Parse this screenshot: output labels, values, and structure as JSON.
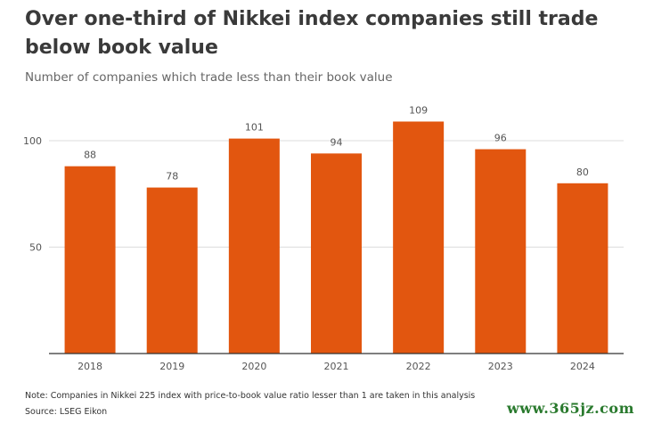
{
  "chart_data": {
    "type": "bar",
    "title": "Over one-third of Nikkei index companies still trade below book value",
    "subtitle": "Number of companies which trade less than their book value",
    "categories": [
      "2018",
      "2019",
      "2020",
      "2021",
      "2022",
      "2023",
      "2024"
    ],
    "values": [
      88,
      78,
      101,
      94,
      109,
      96,
      80
    ],
    "data_labels": [
      "88",
      "78",
      "101",
      "94",
      "109",
      "96",
      "80"
    ],
    "y_ticks": [
      50,
      100
    ],
    "ylim": [
      0,
      118
    ],
    "grid": true,
    "bar_color": "#e2560f"
  },
  "note": "Note: Companies in Nikkei 225 index with price-to-book value ratio lesser than 1 are taken in this analysis",
  "source": "Source: LSEG Eikon",
  "watermark": "www.365jz.com"
}
